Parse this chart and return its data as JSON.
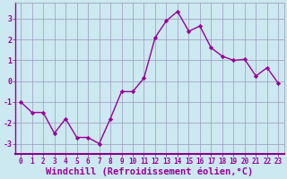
{
  "x": [
    0,
    1,
    2,
    3,
    4,
    5,
    6,
    7,
    8,
    9,
    10,
    11,
    12,
    13,
    14,
    15,
    16,
    17,
    18,
    19,
    20,
    21,
    22,
    23
  ],
  "y": [
    -1.0,
    -1.5,
    -1.5,
    -2.5,
    -1.8,
    -2.7,
    -2.7,
    -3.0,
    -1.8,
    -0.5,
    -0.5,
    0.15,
    2.1,
    2.9,
    3.35,
    2.4,
    2.65,
    1.6,
    1.2,
    1.0,
    1.05,
    0.25,
    0.65,
    -0.1
  ],
  "line_color": "#990099",
  "marker": "D",
  "marker_size": 2.2,
  "bg_color": "#cce8f0",
  "grid_color": "#9999bb",
  "xlabel": "Windchill (Refroidissement éolien,°C)",
  "xlabel_color": "#990099",
  "xlim": [
    -0.5,
    23.5
  ],
  "ylim": [
    -3.5,
    3.75
  ],
  "yticks": [
    -3,
    -2,
    -1,
    0,
    1,
    2,
    3
  ],
  "xticks": [
    0,
    1,
    2,
    3,
    4,
    5,
    6,
    7,
    8,
    9,
    10,
    11,
    12,
    13,
    14,
    15,
    16,
    17,
    18,
    19,
    20,
    21,
    22,
    23
  ],
  "tick_color": "#990099",
  "tick_fontsize": 5.5,
  "xlabel_fontsize": 7.5,
  "linewidth": 1.0,
  "spine_color": "#990099",
  "bottom_spine_color": "#880088"
}
